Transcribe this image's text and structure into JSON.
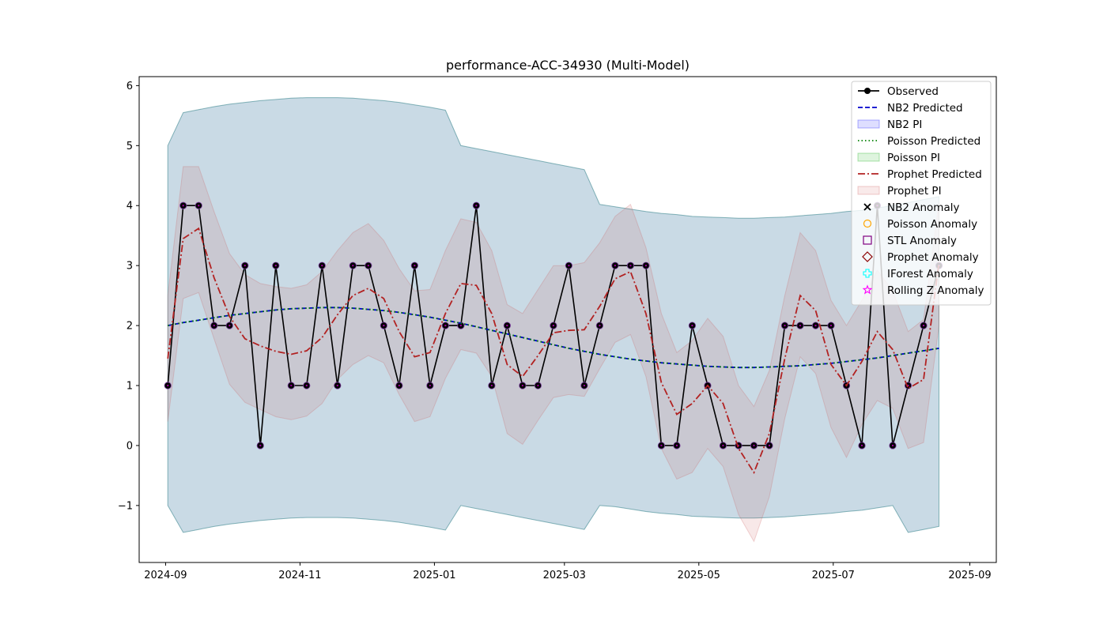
{
  "chart_data": {
    "type": "line",
    "title": "performance-ACC-34930 (Multi-Model)",
    "xlabel": "",
    "ylabel": "",
    "xlim": [
      "2024-08-20",
      "2025-09-13"
    ],
    "ylim": [
      -1.95,
      6.15
    ],
    "x_ticks": [
      "2024-09-01",
      "2024-11-01",
      "2025-01-01",
      "2025-03-01",
      "2025-05-01",
      "2025-07-01",
      "2025-09-01"
    ],
    "x_tick_labels": [
      "2024-09",
      "2024-11",
      "2025-01",
      "2025-03",
      "2025-05",
      "2025-07",
      "2025-09"
    ],
    "y_ticks": [
      -1,
      0,
      1,
      2,
      3,
      4,
      5,
      6
    ],
    "y_tick_labels": [
      "−1",
      "0",
      "1",
      "2",
      "3",
      "4",
      "5",
      "6"
    ],
    "grid": false,
    "legend_position": "top-right",
    "x": [
      "2024-09-02",
      "2024-09-09",
      "2024-09-16",
      "2024-09-23",
      "2024-09-30",
      "2024-10-07",
      "2024-10-14",
      "2024-10-21",
      "2024-10-28",
      "2024-11-04",
      "2024-11-11",
      "2024-11-18",
      "2024-11-25",
      "2024-12-02",
      "2024-12-09",
      "2024-12-16",
      "2024-12-23",
      "2024-12-30",
      "2025-01-06",
      "2025-01-13",
      "2025-01-20",
      "2025-01-27",
      "2025-02-03",
      "2025-02-10",
      "2025-02-17",
      "2025-02-24",
      "2025-03-03",
      "2025-03-10",
      "2025-03-17",
      "2025-03-24",
      "2025-03-31",
      "2025-04-07",
      "2025-04-14",
      "2025-04-21",
      "2025-04-28",
      "2025-05-05",
      "2025-05-12",
      "2025-05-19",
      "2025-05-26",
      "2025-06-02",
      "2025-06-09",
      "2025-06-16",
      "2025-06-23",
      "2025-06-30",
      "2025-07-07",
      "2025-07-14",
      "2025-07-21",
      "2025-07-28",
      "2025-08-04",
      "2025-08-11",
      "2025-08-18"
    ],
    "series": [
      {
        "name": "Observed",
        "color": "#000000",
        "style": "solid-marker",
        "values": [
          1,
          4,
          4,
          2,
          2,
          3,
          0,
          3,
          1,
          1,
          3,
          1,
          3,
          3,
          2,
          1,
          3,
          1,
          2,
          2,
          4,
          1,
          2,
          1,
          1,
          2,
          3,
          1,
          2,
          3,
          3,
          3,
          0,
          0,
          2,
          1,
          0,
          0,
          0,
          0,
          2,
          2,
          2,
          2,
          1,
          0,
          4,
          0,
          1,
          2,
          3
        ]
      },
      {
        "name": "NB2 Predicted",
        "color": "#0000cc",
        "style": "dashed",
        "values": [
          2.0,
          2.05,
          2.09,
          2.13,
          2.17,
          2.2,
          2.23,
          2.26,
          2.28,
          2.29,
          2.3,
          2.3,
          2.29,
          2.27,
          2.25,
          2.22,
          2.18,
          2.14,
          2.09,
          2.04,
          1.98,
          1.92,
          1.86,
          1.8,
          1.74,
          1.68,
          1.62,
          1.57,
          1.52,
          1.48,
          1.44,
          1.41,
          1.38,
          1.36,
          1.34,
          1.32,
          1.31,
          1.3,
          1.3,
          1.31,
          1.32,
          1.33,
          1.35,
          1.37,
          1.4,
          1.43,
          1.46,
          1.5,
          1.54,
          1.58,
          1.62
        ]
      },
      {
        "name": "Poisson Predicted",
        "color": "#008000",
        "style": "dotted",
        "values": [
          2.0,
          2.05,
          2.09,
          2.13,
          2.17,
          2.2,
          2.23,
          2.26,
          2.28,
          2.29,
          2.3,
          2.3,
          2.29,
          2.27,
          2.25,
          2.22,
          2.18,
          2.14,
          2.09,
          2.04,
          1.98,
          1.92,
          1.86,
          1.8,
          1.74,
          1.68,
          1.62,
          1.57,
          1.52,
          1.48,
          1.44,
          1.41,
          1.38,
          1.36,
          1.34,
          1.32,
          1.31,
          1.3,
          1.3,
          1.31,
          1.32,
          1.33,
          1.35,
          1.37,
          1.4,
          1.43,
          1.46,
          1.5,
          1.54,
          1.58,
          1.62
        ]
      },
      {
        "name": "Prophet Predicted",
        "color": "#b22222",
        "style": "dashdot",
        "values": [
          1.45,
          3.45,
          3.62,
          2.8,
          2.15,
          1.78,
          1.66,
          1.57,
          1.52,
          1.58,
          1.8,
          2.18,
          2.5,
          2.62,
          2.45,
          1.9,
          1.48,
          1.55,
          2.2,
          2.7,
          2.67,
          2.2,
          1.35,
          1.15,
          1.5,
          1.88,
          1.92,
          1.93,
          2.32,
          2.78,
          2.9,
          2.2,
          1.05,
          0.52,
          0.7,
          1.0,
          0.7,
          -0.05,
          -0.45,
          0.2,
          1.45,
          2.5,
          2.25,
          1.35,
          1.0,
          1.4,
          1.9,
          1.6,
          0.95,
          1.1,
          3.05
        ]
      }
    ],
    "intervals": [
      {
        "name": "NB2 PI",
        "color": "#0000ff",
        "opacity": 0.12,
        "upper": [
          5.0,
          5.55,
          5.6,
          5.65,
          5.69,
          5.72,
          5.75,
          5.77,
          5.79,
          5.8,
          5.8,
          5.8,
          5.79,
          5.77,
          5.75,
          5.72,
          5.68,
          5.64,
          5.59,
          5.0,
          4.95,
          4.9,
          4.85,
          4.8,
          4.75,
          4.7,
          4.65,
          4.6,
          4.02,
          3.98,
          3.94,
          3.9,
          3.87,
          3.85,
          3.82,
          3.81,
          3.8,
          3.79,
          3.79,
          3.8,
          3.81,
          3.83,
          3.85,
          3.87,
          3.9,
          3.92,
          3.96,
          4.0,
          4.05,
          4.1,
          4.15
        ],
        "lower": [
          -1.0,
          -1.45,
          -1.4,
          -1.35,
          -1.31,
          -1.28,
          -1.25,
          -1.23,
          -1.21,
          -1.2,
          -1.2,
          -1.2,
          -1.21,
          -1.23,
          -1.25,
          -1.28,
          -1.32,
          -1.36,
          -1.41,
          -1.0,
          -1.05,
          -1.1,
          -1.15,
          -1.2,
          -1.25,
          -1.3,
          -1.35,
          -1.4,
          -1.0,
          -1.02,
          -1.06,
          -1.1,
          -1.13,
          -1.15,
          -1.18,
          -1.19,
          -1.2,
          -1.21,
          -1.21,
          -1.2,
          -1.19,
          -1.17,
          -1.15,
          -1.13,
          -1.1,
          -1.08,
          -1.04,
          -1.0,
          -1.45,
          -1.4,
          -1.35
        ]
      },
      {
        "name": "Poisson PI",
        "color": "#00aa00",
        "opacity": 0.1,
        "upper": [
          5.0,
          5.55,
          5.6,
          5.65,
          5.69,
          5.72,
          5.75,
          5.77,
          5.79,
          5.8,
          5.8,
          5.8,
          5.79,
          5.77,
          5.75,
          5.72,
          5.68,
          5.64,
          5.59,
          5.0,
          4.95,
          4.9,
          4.85,
          4.8,
          4.75,
          4.7,
          4.65,
          4.6,
          4.02,
          3.98,
          3.94,
          3.9,
          3.87,
          3.85,
          3.82,
          3.81,
          3.8,
          3.79,
          3.79,
          3.8,
          3.81,
          3.83,
          3.85,
          3.87,
          3.9,
          3.92,
          3.96,
          4.0,
          4.05,
          4.1,
          4.15
        ],
        "lower": [
          -1.0,
          -1.45,
          -1.4,
          -1.35,
          -1.31,
          -1.28,
          -1.25,
          -1.23,
          -1.21,
          -1.2,
          -1.2,
          -1.2,
          -1.21,
          -1.23,
          -1.25,
          -1.28,
          -1.32,
          -1.36,
          -1.41,
          -1.0,
          -1.05,
          -1.1,
          -1.15,
          -1.2,
          -1.25,
          -1.3,
          -1.35,
          -1.4,
          -1.0,
          -1.02,
          -1.06,
          -1.1,
          -1.13,
          -1.15,
          -1.18,
          -1.19,
          -1.2,
          -1.21,
          -1.21,
          -1.2,
          -1.19,
          -1.17,
          -1.15,
          -1.13,
          -1.1,
          -1.08,
          -1.04,
          -1.0,
          -1.45,
          -1.4,
          -1.35
        ]
      },
      {
        "name": "Prophet PI",
        "color": "#cd5c5c",
        "opacity": 0.14,
        "upper": [
          2.5,
          4.65,
          4.65,
          3.9,
          3.2,
          2.85,
          2.7,
          2.65,
          2.62,
          2.68,
          2.9,
          3.25,
          3.55,
          3.7,
          3.42,
          2.95,
          2.58,
          2.6,
          3.25,
          3.78,
          3.72,
          3.25,
          2.35,
          2.2,
          2.6,
          3.0,
          3.0,
          3.05,
          3.38,
          3.82,
          4.02,
          3.3,
          2.2,
          1.55,
          1.75,
          2.12,
          1.82,
          1.0,
          0.65,
          1.25,
          2.5,
          3.55,
          3.25,
          2.42,
          2.0,
          2.42,
          2.92,
          2.58,
          1.9,
          2.1,
          4.05
        ],
        "lower": [
          0.4,
          2.45,
          2.55,
          1.78,
          1.02,
          0.72,
          0.6,
          0.48,
          0.43,
          0.49,
          0.7,
          1.1,
          1.35,
          1.5,
          1.38,
          0.85,
          0.4,
          0.48,
          1.12,
          1.6,
          1.54,
          1.15,
          0.2,
          0.02,
          0.42,
          0.8,
          0.85,
          0.82,
          1.28,
          1.72,
          1.85,
          1.15,
          -0.05,
          -0.56,
          -0.45,
          -0.05,
          -0.35,
          -1.15,
          -1.6,
          -0.85,
          0.45,
          1.48,
          1.2,
          0.3,
          -0.2,
          0.35,
          0.75,
          0.62,
          -0.05,
          0.05,
          2.0
        ]
      }
    ],
    "legend": [
      {
        "label": "Observed",
        "kind": "line-marker",
        "color": "#000000"
      },
      {
        "label": "NB2 Predicted",
        "kind": "dashed",
        "color": "#0000cc"
      },
      {
        "label": "NB2 PI",
        "kind": "patch",
        "color": "#0000ff"
      },
      {
        "label": "Poisson Predicted",
        "kind": "dotted",
        "color": "#008000"
      },
      {
        "label": "Poisson PI",
        "kind": "patch",
        "color": "#00aa00"
      },
      {
        "label": "Prophet Predicted",
        "kind": "dashdot",
        "color": "#b22222"
      },
      {
        "label": "Prophet PI",
        "kind": "patch",
        "color": "#cd5c5c"
      },
      {
        "label": "NB2 Anomaly",
        "kind": "x-marker",
        "color": "#000000"
      },
      {
        "label": "Poisson Anomaly",
        "kind": "circle-marker",
        "color": "#ffa500"
      },
      {
        "label": "STL Anomaly",
        "kind": "square-marker",
        "color": "#800080"
      },
      {
        "label": "Prophet Anomaly",
        "kind": "diamond-marker",
        "color": "#8b0000"
      },
      {
        "label": "IForest Anomaly",
        "kind": "plus-marker",
        "color": "#00ffff"
      },
      {
        "label": "Rolling Z Anomaly",
        "kind": "star-marker",
        "color": "#ff00ff"
      }
    ]
  }
}
